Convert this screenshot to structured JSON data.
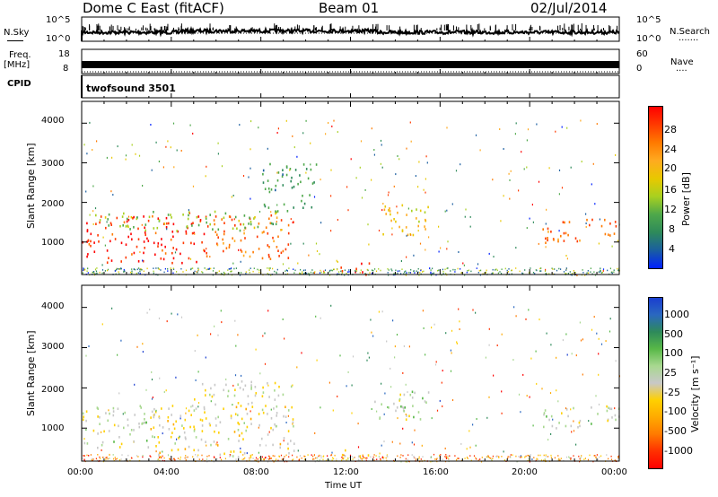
{
  "header": {
    "radar": "Dome C East (fitACF)",
    "beam": "Beam 01",
    "date": "02/Jul/2014"
  },
  "top_panel": {
    "left_label": "N.Sky",
    "left_ticks": [
      "10^5",
      "10^0"
    ],
    "right_ticks": [
      "10^5",
      "10^0"
    ],
    "right_label": "N.Search",
    "right_dots": "......."
  },
  "freq_panel": {
    "left_label_1": "Freq.",
    "left_label_2": "[MHz]",
    "left_ticks": [
      "18",
      "8"
    ],
    "right_ticks": [
      "60",
      "0"
    ],
    "right_label": "Nave",
    "right_dots": "...."
  },
  "cpid_panel": {
    "label": "CPID",
    "value": "twofsound 3501"
  },
  "axes": {
    "ylabel": "Slant Range [km]",
    "xlabel": "Time UT",
    "yticks": [
      "4000",
      "3000",
      "2000",
      "1000"
    ],
    "xticks": [
      "00:00",
      "04:00",
      "08:00",
      "12:00",
      "16:00",
      "20:00",
      "00:00"
    ]
  },
  "power_colorbar": {
    "label": "Power [dB]",
    "ticks": [
      "28",
      "24",
      "20",
      "16",
      "12",
      "8",
      "4"
    ],
    "colors": [
      "#ff0000",
      "#ff3a00",
      "#ff7a00",
      "#ffaa20",
      "#e8c800",
      "#a8d020",
      "#4ea84a",
      "#2e8a5a",
      "#1a5ea0",
      "#0020ff"
    ]
  },
  "velocity_colorbar": {
    "label": "Velocity [m s⁻¹]",
    "ticks": [
      "1000",
      "500",
      "100",
      "25",
      "-25",
      "-100",
      "-500",
      "-1000"
    ],
    "colors": [
      "#1a3ed0",
      "#2a68c0",
      "#2e8a5a",
      "#58b848",
      "#a8d890",
      "#c8c8c8",
      "#ffd000",
      "#ffaa00",
      "#ff7a00",
      "#ff3000",
      "#ff0000"
    ]
  },
  "chart_data": [
    {
      "type": "heatmap",
      "title": "Power [dB]",
      "xlabel": "Time UT",
      "ylabel": "Slant Range [km]",
      "xlim": [
        "00:00",
        "24:00"
      ],
      "ylim": [
        180,
        4550
      ],
      "color_range": [
        0,
        30
      ],
      "regions": [
        {
          "t_start": 0.0,
          "t_end": 5.5,
          "r_start": 500,
          "r_end": 1700,
          "value": 28
        },
        {
          "t_start": 5.5,
          "t_end": 9.5,
          "r_start": 600,
          "r_end": 1700,
          "value": 24
        },
        {
          "t_start": 0.5,
          "t_end": 9.0,
          "r_start": 1300,
          "r_end": 1800,
          "value": 12
        },
        {
          "t_start": 8.0,
          "t_end": 10.5,
          "r_start": 1800,
          "r_end": 3000,
          "value": 8
        },
        {
          "t_start": 11.5,
          "t_end": 13.0,
          "r_start": 200,
          "r_end": 500,
          "value": 28
        },
        {
          "t_start": 13.0,
          "t_end": 15.5,
          "r_start": 1200,
          "r_end": 2000,
          "value": 18
        },
        {
          "t_start": 20.5,
          "t_end": 24.0,
          "r_start": 1000,
          "r_end": 1600,
          "value": 24
        }
      ]
    },
    {
      "type": "heatmap",
      "title": "Velocity [m s⁻¹]",
      "xlabel": "Time UT",
      "ylabel": "Slant Range [km]",
      "xlim": [
        "00:00",
        "24:00"
      ],
      "ylim": [
        180,
        4550
      ],
      "color_range": [
        -1000,
        1000
      ],
      "regions": [
        {
          "t_start": 0.0,
          "t_end": 3.0,
          "r_start": 500,
          "r_end": 1600,
          "value": 100
        },
        {
          "t_start": 3.0,
          "t_end": 9.5,
          "r_start": 300,
          "r_end": 1600,
          "value": -100
        },
        {
          "t_start": 5.0,
          "t_end": 9.5,
          "r_start": 1500,
          "r_end": 2200,
          "value": 0
        },
        {
          "t_start": 11.5,
          "t_end": 13.0,
          "r_start": 200,
          "r_end": 500,
          "value": -100
        },
        {
          "t_start": 13.0,
          "t_end": 15.5,
          "r_start": 1200,
          "r_end": 2000,
          "value": 100
        },
        {
          "t_start": 20.5,
          "t_end": 24.0,
          "r_start": 1000,
          "r_end": 1600,
          "value": 100
        }
      ]
    }
  ]
}
